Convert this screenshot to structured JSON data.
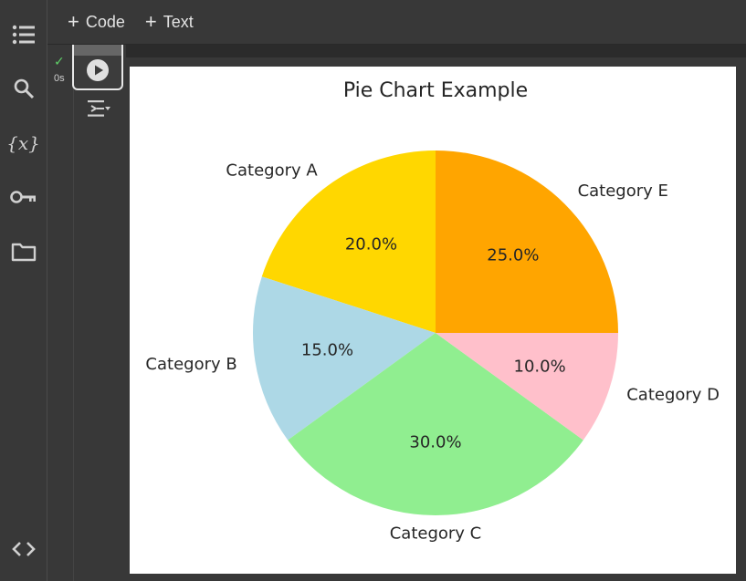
{
  "toolbar": {
    "code_label": "Code",
    "text_label": "Text"
  },
  "sidebar": {
    "icons": [
      "table-of-contents-icon",
      "search-icon",
      "variables-icon",
      "secrets-key-icon",
      "folder-icon",
      "code-snippets-icon"
    ],
    "variables_glyph": "{x}"
  },
  "cell": {
    "status": "success",
    "exec_time": "0s"
  },
  "colors": {
    "A": "#ffd700",
    "B": "#add8e6",
    "C": "#90ee90",
    "D": "#ffc0cb",
    "E": "#ffa500",
    "check": "#5fd068"
  },
  "chart_data": {
    "type": "pie",
    "title": "Pie Chart Example",
    "start_angle_deg": 90,
    "direction": "counterclockwise",
    "slices": [
      {
        "label": "Category A",
        "value": 20,
        "pct_label": "20.0%",
        "color": "#ffd700"
      },
      {
        "label": "Category B",
        "value": 15,
        "pct_label": "15.0%",
        "color": "#add8e6"
      },
      {
        "label": "Category C",
        "value": 30,
        "pct_label": "30.0%",
        "color": "#90ee90"
      },
      {
        "label": "Category D",
        "value": 10,
        "pct_label": "10.0%",
        "color": "#ffc0cb"
      },
      {
        "label": "Category E",
        "value": 25,
        "pct_label": "25.0%",
        "color": "#ffa500"
      }
    ]
  }
}
